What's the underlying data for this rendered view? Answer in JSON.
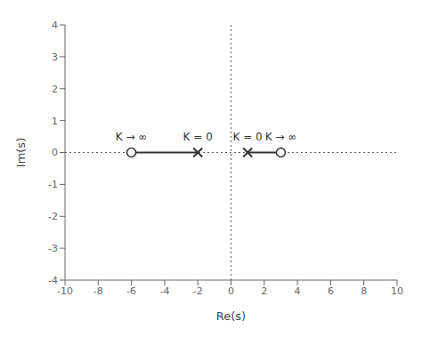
{
  "chart_data": {
    "type": "root_locus",
    "title": "",
    "xlabel": "Re(s)",
    "ylabel": "Im(s)",
    "xlim": [
      -10,
      10
    ],
    "ylim": [
      -4,
      4
    ],
    "xticks": [
      -10,
      -8,
      -6,
      -4,
      -2,
      0,
      2,
      4,
      6,
      8,
      10
    ],
    "yticks": [
      -4,
      -3,
      -2,
      -1,
      0,
      1,
      2,
      3,
      4
    ],
    "poles": [
      -2,
      1
    ],
    "zeros": [
      -6,
      3
    ],
    "locus_segments": [
      [
        -6,
        -2
      ],
      [
        1,
        3
      ]
    ],
    "annotations": [
      {
        "text": "K → ∞",
        "x": -6,
        "y": 0.32
      },
      {
        "text": "K = 0",
        "x": -2,
        "y": 0.32
      },
      {
        "text": "K = 0",
        "x": 1,
        "y": 0.32
      },
      {
        "text": "K → ∞",
        "x": 3,
        "y": 0.32
      }
    ],
    "color": "#333333",
    "grid": false
  }
}
